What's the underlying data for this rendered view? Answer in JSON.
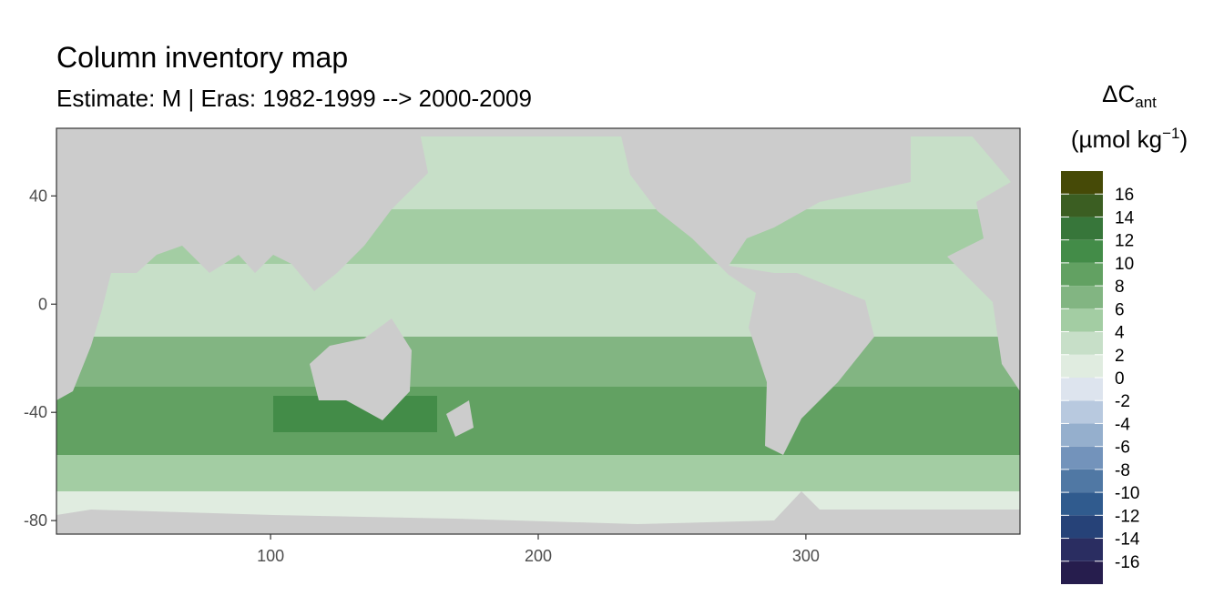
{
  "chart_data": {
    "type": "map",
    "title": "Column inventory map",
    "subtitle": "Estimate: M  | Eras: 1982-1999 --> 2000-2009",
    "legend_title": {
      "symbol": "ΔC",
      "subscript": "ant",
      "unit": "(µmol kg",
      "superscript": "−1",
      "close": ")"
    },
    "xlim": [
      20,
      380
    ],
    "xticks": [
      100,
      200,
      300
    ],
    "ylim": [
      -85,
      65
    ],
    "yticks": [
      40,
      0,
      -40,
      -80
    ],
    "breaks": [
      -18,
      -16,
      -14,
      -12,
      -10,
      -8,
      -6,
      -4,
      -2,
      0,
      2,
      4,
      6,
      8,
      10,
      12,
      14,
      16,
      18
    ],
    "colors": [
      "#261d4d",
      "#2a2d61",
      "#264278",
      "#305b8e",
      "#5078a4",
      "#7393bb",
      "#95afcd",
      "#b8c9df",
      "#dde4ee",
      "#e0ece0",
      "#c7dfc8",
      "#a3cda3",
      "#82b582",
      "#62a162",
      "#438c48",
      "#37763a",
      "#3b5e22",
      "#464a07"
    ],
    "legend_ticks": [
      16,
      14,
      12,
      10,
      8,
      6,
      4,
      2,
      0,
      -2,
      -4,
      -6,
      -8,
      -10,
      -12,
      -14,
      -16
    ]
  }
}
